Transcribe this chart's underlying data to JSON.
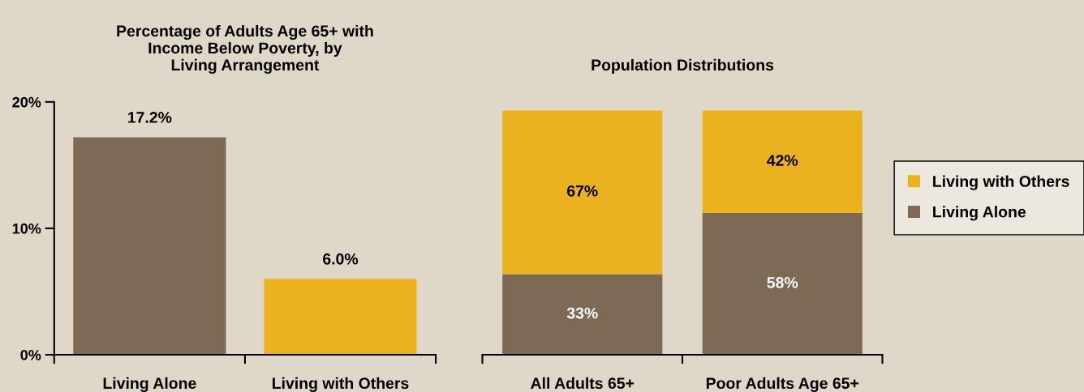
{
  "chart_data": [
    {
      "type": "bar",
      "title": "Percentage of Adults Age 65+ with\nIncome Below Poverty, by\nLiving Arrangement",
      "categories": [
        "Living Alone",
        "Living with Others"
      ],
      "values": [
        17.2,
        6.0
      ],
      "colors": [
        "#7d6a56",
        "#ebb220"
      ],
      "value_labels": [
        "17.2%",
        "6.0%"
      ],
      "ylim": [
        0,
        20
      ],
      "yticks": [
        {
          "value": 0,
          "label": "0%"
        },
        {
          "value": 10,
          "label": "10%"
        },
        {
          "value": 20,
          "label": "20%"
        }
      ],
      "grid": false
    },
    {
      "type": "bar",
      "title": "Population Distributions",
      "categories": [
        "All Adults 65+",
        "Poor Adults Age 65+"
      ],
      "stacked": true,
      "legend": "right",
      "series": [
        {
          "name": "Living Alone",
          "color": "#7d6a56",
          "values": [
            33,
            58
          ],
          "value_labels": [
            "33%",
            "58%"
          ]
        },
        {
          "name": "Living with Others",
          "color": "#ebb220",
          "values": [
            67,
            42
          ],
          "value_labels": [
            "67%",
            "42%"
          ]
        }
      ]
    }
  ]
}
